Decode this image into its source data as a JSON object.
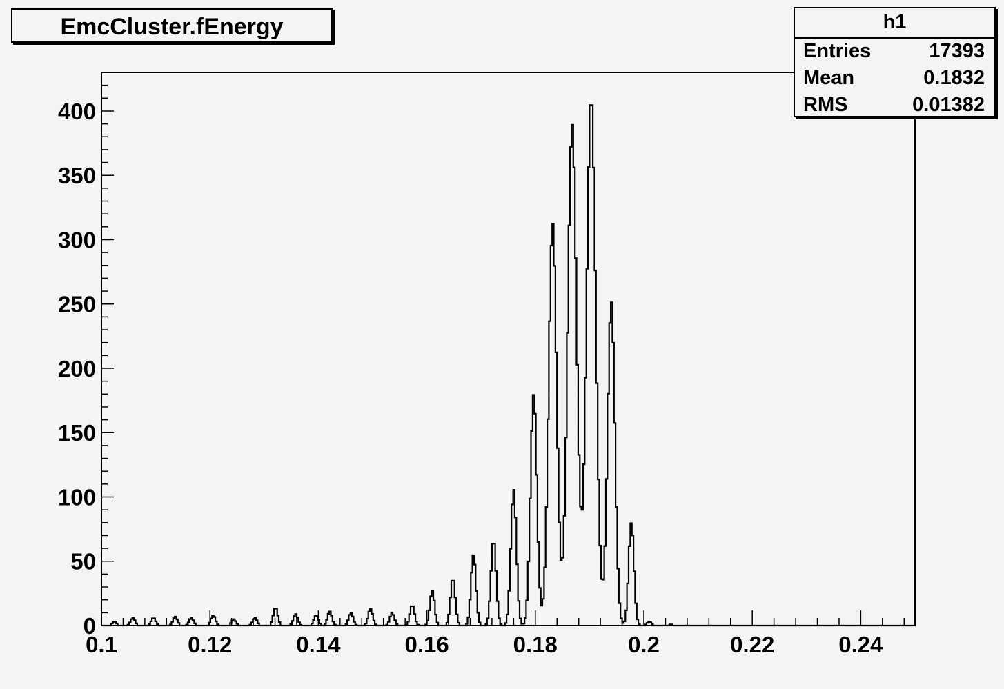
{
  "title": "EmcCluster.fEnergy",
  "stats": {
    "name": "h1",
    "rows": [
      {
        "label": "Entries",
        "value": "17393"
      },
      {
        "label": "Mean",
        "value": "0.1832"
      },
      {
        "label": "RMS",
        "value": "0.01382"
      }
    ]
  },
  "chart_data": {
    "type": "histogram",
    "title": "EmcCluster.fEnergy",
    "xlabel": "",
    "ylabel": "",
    "xlim": [
      0.1,
      0.25
    ],
    "ylim": [
      0,
      430
    ],
    "x_ticks": [
      "0.1",
      "0.12",
      "0.14",
      "0.16",
      "0.18",
      "0.2",
      "0.22",
      "0.24"
    ],
    "y_ticks": [
      "0",
      "50",
      "100",
      "150",
      "200",
      "250",
      "300",
      "350",
      "400"
    ],
    "grid": false,
    "line_color": "#000000",
    "background": "#f4f4f4",
    "peaks": [
      {
        "x": 0.1024,
        "y": 3
      },
      {
        "x": 0.1058,
        "y": 6
      },
      {
        "x": 0.1096,
        "y": 6
      },
      {
        "x": 0.1136,
        "y": 7
      },
      {
        "x": 0.1166,
        "y": 6
      },
      {
        "x": 0.1206,
        "y": 8
      },
      {
        "x": 0.1244,
        "y": 5
      },
      {
        "x": 0.1283,
        "y": 6
      },
      {
        "x": 0.1321,
        "y": 14
      },
      {
        "x": 0.1358,
        "y": 9
      },
      {
        "x": 0.1396,
        "y": 8
      },
      {
        "x": 0.1421,
        "y": 11
      },
      {
        "x": 0.146,
        "y": 10
      },
      {
        "x": 0.1496,
        "y": 13
      },
      {
        "x": 0.1536,
        "y": 10
      },
      {
        "x": 0.1573,
        "y": 16
      },
      {
        "x": 0.161,
        "y": 27
      },
      {
        "x": 0.1648,
        "y": 37
      },
      {
        "x": 0.1686,
        "y": 55
      },
      {
        "x": 0.1723,
        "y": 67
      },
      {
        "x": 0.176,
        "y": 106
      },
      {
        "x": 0.1797,
        "y": 180
      },
      {
        "x": 0.1832,
        "y": 313
      },
      {
        "x": 0.1868,
        "y": 390
      },
      {
        "x": 0.1903,
        "y": 411
      },
      {
        "x": 0.194,
        "y": 252
      },
      {
        "x": 0.1977,
        "y": 80
      },
      {
        "x": 0.201,
        "y": 3
      },
      {
        "x": 0.205,
        "y": 1
      }
    ]
  }
}
